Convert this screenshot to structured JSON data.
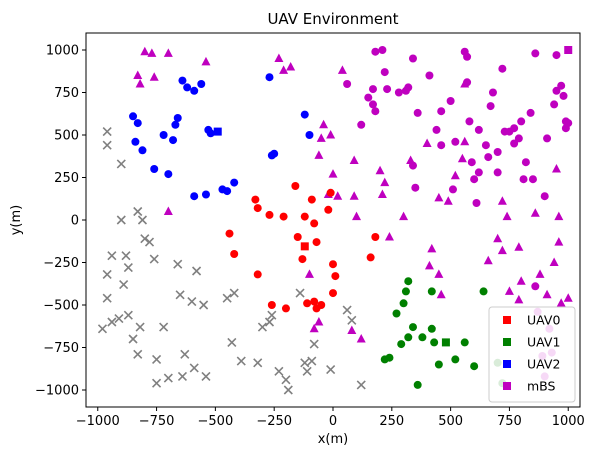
{
  "chart_data": {
    "type": "scatter",
    "title": "UAV Environment",
    "xlabel": "x(m)",
    "ylabel": "y(m)",
    "xlim": [
      -1050,
      1050
    ],
    "ylim": [
      -1100,
      1100
    ],
    "xticks": [
      -1000,
      -750,
      -500,
      -250,
      0,
      250,
      500,
      750,
      1000
    ],
    "yticks": [
      -1000,
      -750,
      -500,
      -250,
      0,
      250,
      500,
      750,
      1000
    ],
    "grid": false,
    "legend_placement": "lower-right",
    "legend": [
      {
        "label": "UAV0",
        "color": "#ff0000",
        "marker": "square"
      },
      {
        "label": "UAV1",
        "color": "#008000",
        "marker": "square"
      },
      {
        "label": "UAV2",
        "color": "#0000ff",
        "marker": "square"
      },
      {
        "label": "mBS",
        "color": "#bf00bf",
        "marker": "square"
      }
    ],
    "series": [
      {
        "group": "UAV0-uav",
        "color": "#ff0000",
        "marker": "square",
        "points": [
          [
            -120,
            -155
          ]
        ]
      },
      {
        "group": "UAV1-uav",
        "color": "#008000",
        "marker": "square",
        "points": [
          [
            480,
            -720
          ]
        ]
      },
      {
        "group": "UAV2-uav",
        "color": "#0000ff",
        "marker": "square",
        "points": [
          [
            -490,
            520
          ]
        ]
      },
      {
        "group": "mBS-uav",
        "color": "#bf00bf",
        "marker": "square",
        "points": [
          [
            1000,
            1000
          ]
        ]
      },
      {
        "group": "UAV0-users",
        "color": "#ff0000",
        "marker": "circle",
        "points": [
          [
            -440,
            -80
          ],
          [
            -420,
            -200
          ],
          [
            -330,
            120
          ],
          [
            -320,
            70
          ],
          [
            -320,
            -320
          ],
          [
            -270,
            30
          ],
          [
            -260,
            -500
          ],
          [
            -200,
            -520
          ],
          [
            -210,
            20
          ],
          [
            -160,
            200
          ],
          [
            -150,
            -100
          ],
          [
            -130,
            -230
          ],
          [
            -120,
            20
          ],
          [
            -110,
            -490
          ],
          [
            -90,
            120
          ],
          [
            -80,
            -20
          ],
          [
            -80,
            -480
          ],
          [
            -70,
            -130
          ],
          [
            -70,
            -520
          ],
          [
            -50,
            -500
          ],
          [
            -10,
            160
          ],
          [
            -20,
            60
          ],
          [
            0,
            -260
          ],
          [
            0,
            -430
          ],
          [
            10,
            -330
          ],
          [
            160,
            -220
          ],
          [
            180,
            -100
          ]
        ]
      },
      {
        "group": "UAV1-users",
        "color": "#008000",
        "marker": "circle",
        "points": [
          [
            220,
            -820
          ],
          [
            240,
            -810
          ],
          [
            270,
            -550
          ],
          [
            290,
            -730
          ],
          [
            300,
            -490
          ],
          [
            310,
            -420
          ],
          [
            320,
            -360
          ],
          [
            320,
            -690
          ],
          [
            340,
            -630
          ],
          [
            360,
            -970
          ],
          [
            380,
            -690
          ],
          [
            420,
            -420
          ],
          [
            420,
            -640
          ],
          [
            430,
            -720
          ],
          [
            450,
            -850
          ],
          [
            520,
            -820
          ],
          [
            560,
            -720
          ],
          [
            600,
            -860
          ],
          [
            640,
            -420
          ],
          [
            700,
            -840
          ],
          [
            720,
            -960
          ]
        ]
      },
      {
        "group": "UAV2-users",
        "color": "#0000ff",
        "marker": "circle",
        "points": [
          [
            -850,
            610
          ],
          [
            -840,
            460
          ],
          [
            -830,
            570
          ],
          [
            -810,
            410
          ],
          [
            -760,
            300
          ],
          [
            -720,
            500
          ],
          [
            -700,
            270
          ],
          [
            -680,
            470
          ],
          [
            -670,
            560
          ],
          [
            -660,
            600
          ],
          [
            -640,
            820
          ],
          [
            -620,
            780
          ],
          [
            -590,
            760
          ],
          [
            -590,
            140
          ],
          [
            -560,
            800
          ],
          [
            -540,
            150
          ],
          [
            -530,
            530
          ],
          [
            -520,
            510
          ],
          [
            -470,
            180
          ],
          [
            -450,
            170
          ],
          [
            -420,
            220
          ],
          [
            -270,
            840
          ],
          [
            -260,
            380
          ],
          [
            -250,
            390
          ],
          [
            -120,
            620
          ],
          [
            -100,
            500
          ]
        ]
      },
      {
        "group": "mBS-users",
        "color": "#bf00bf",
        "marker": "circle",
        "points": [
          [
            60,
            800
          ],
          [
            120,
            560
          ],
          [
            150,
            720
          ],
          [
            170,
            770
          ],
          [
            170,
            680
          ],
          [
            180,
            640
          ],
          [
            180,
            990
          ],
          [
            210,
            1000
          ],
          [
            220,
            870
          ],
          [
            230,
            770
          ],
          [
            280,
            750
          ],
          [
            310,
            760
          ],
          [
            320,
            780
          ],
          [
            340,
            950
          ],
          [
            340,
            320
          ],
          [
            350,
            190
          ],
          [
            360,
            630
          ],
          [
            410,
            850
          ],
          [
            440,
            530
          ],
          [
            460,
            440
          ],
          [
            460,
            640
          ],
          [
            500,
            700
          ],
          [
            510,
            180
          ],
          [
            520,
            460
          ],
          [
            560,
            990
          ],
          [
            570,
            960
          ],
          [
            570,
            810
          ],
          [
            580,
            580
          ],
          [
            590,
            340
          ],
          [
            600,
            240
          ],
          [
            610,
            100
          ],
          [
            620,
            280
          ],
          [
            620,
            530
          ],
          [
            650,
            440
          ],
          [
            660,
            370
          ],
          [
            670,
            670
          ],
          [
            680,
            750
          ],
          [
            700,
            400
          ],
          [
            700,
            280
          ],
          [
            720,
            890
          ],
          [
            730,
            520
          ],
          [
            750,
            520
          ],
          [
            770,
            540
          ],
          [
            770,
            450
          ],
          [
            790,
            480
          ],
          [
            800,
            580
          ],
          [
            810,
            240
          ],
          [
            820,
            340
          ],
          [
            840,
            630
          ],
          [
            850,
            240
          ],
          [
            860,
            980
          ],
          [
            900,
            140
          ],
          [
            910,
            480
          ],
          [
            940,
            680
          ],
          [
            950,
            760
          ],
          [
            950,
            970
          ],
          [
            970,
            790
          ],
          [
            980,
            730
          ],
          [
            990,
            580
          ],
          [
            990,
            540
          ],
          [
            1000,
            570
          ],
          [
            860,
            -390
          ],
          [
            870,
            -540
          ],
          [
            890,
            -800
          ],
          [
            900,
            -920
          ],
          [
            920,
            -640
          ],
          [
            930,
            -780
          ]
        ]
      },
      {
        "group": "mBS-sites",
        "color": "#bf00bf",
        "marker": "triangle",
        "points": [
          [
            -830,
            850
          ],
          [
            -820,
            800
          ],
          [
            -800,
            990
          ],
          [
            -770,
            980
          ],
          [
            -760,
            840
          ],
          [
            -700,
            980
          ],
          [
            -700,
            50
          ],
          [
            -540,
            930
          ],
          [
            -230,
            950
          ],
          [
            -210,
            880
          ],
          [
            -180,
            900
          ],
          [
            -40,
            560
          ],
          [
            -60,
            380
          ],
          [
            -50,
            480
          ],
          [
            -20,
            150
          ],
          [
            -10,
            500
          ],
          [
            0,
            270
          ],
          [
            20,
            140
          ],
          [
            40,
            880
          ],
          [
            90,
            350
          ],
          [
            90,
            140
          ],
          [
            100,
            20
          ],
          [
            80,
            -650
          ],
          [
            200,
            290
          ],
          [
            210,
            150
          ],
          [
            220,
            220
          ],
          [
            240,
            -100
          ],
          [
            300,
            20
          ],
          [
            330,
            350
          ],
          [
            400,
            450
          ],
          [
            410,
            -270
          ],
          [
            420,
            -170
          ],
          [
            450,
            -320
          ],
          [
            450,
            130
          ],
          [
            490,
            110
          ],
          [
            520,
            260
          ],
          [
            550,
            360
          ],
          [
            560,
            800
          ],
          [
            560,
            460
          ],
          [
            660,
            -240
          ],
          [
            700,
            -110
          ],
          [
            720,
            110
          ],
          [
            720,
            -180
          ],
          [
            740,
            20
          ],
          [
            750,
            -420
          ],
          [
            790,
            -160
          ],
          [
            790,
            -470
          ],
          [
            800,
            -360
          ],
          [
            860,
            40
          ],
          [
            880,
            -320
          ],
          [
            910,
            -440
          ],
          [
            940,
            -250
          ],
          [
            950,
            300
          ],
          [
            970,
            -490
          ],
          [
            960,
            -130
          ],
          [
            1000,
            -460
          ],
          [
            960,
            20
          ],
          [
            -60,
            -600
          ],
          [
            -80,
            -640
          ],
          [
            120,
            -700
          ],
          [
            -100,
            -320
          ],
          [
            460,
            -440
          ]
        ]
      },
      {
        "group": "ground-nodes",
        "color": "#808080",
        "marker": "x",
        "points": [
          [
            -960,
            520
          ],
          [
            -960,
            440
          ],
          [
            -960,
            -320
          ],
          [
            -960,
            -460
          ],
          [
            -940,
            -210
          ],
          [
            -940,
            -600
          ],
          [
            -980,
            -640
          ],
          [
            -910,
            -580
          ],
          [
            -900,
            330
          ],
          [
            -900,
            0
          ],
          [
            -890,
            -380
          ],
          [
            -880,
            -210
          ],
          [
            -870,
            -280
          ],
          [
            -870,
            -560
          ],
          [
            -850,
            -700
          ],
          [
            -830,
            50
          ],
          [
            -830,
            -790
          ],
          [
            -820,
            -630
          ],
          [
            -810,
            0
          ],
          [
            -800,
            -110
          ],
          [
            -780,
            -130
          ],
          [
            -760,
            -230
          ],
          [
            -750,
            -820
          ],
          [
            -750,
            -960
          ],
          [
            -720,
            -630
          ],
          [
            -700,
            -930
          ],
          [
            -660,
            -260
          ],
          [
            -650,
            -440
          ],
          [
            -640,
            -920
          ],
          [
            -630,
            -790
          ],
          [
            -600,
            -480
          ],
          [
            -590,
            -870
          ],
          [
            -580,
            -300
          ],
          [
            -550,
            -500
          ],
          [
            -540,
            -920
          ],
          [
            -450,
            -460
          ],
          [
            -420,
            -430
          ],
          [
            -430,
            -720
          ],
          [
            -390,
            -830
          ],
          [
            -320,
            -840
          ],
          [
            -300,
            -630
          ],
          [
            -270,
            -600
          ],
          [
            -260,
            -560
          ],
          [
            -230,
            -890
          ],
          [
            -200,
            -940
          ],
          [
            -190,
            -1000
          ],
          [
            -140,
            -430
          ],
          [
            -120,
            -840
          ],
          [
            -110,
            -890
          ],
          [
            -90,
            -830
          ],
          [
            -80,
            -730
          ],
          [
            -10,
            -880
          ],
          [
            60,
            -530
          ],
          [
            80,
            -590
          ],
          [
            120,
            -970
          ]
        ]
      }
    ]
  }
}
